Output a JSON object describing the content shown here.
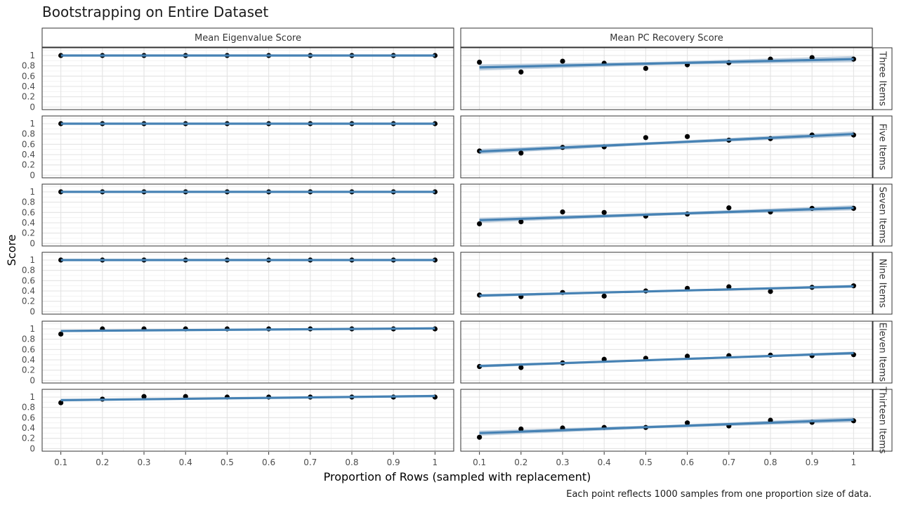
{
  "chart_data": {
    "type": "scatter",
    "title": "Bootstrapping on Entire Dataset",
    "xlabel": "Proportion of Rows (sampled with replacement)",
    "ylabel": "Score",
    "caption": "Each point reflects 1000 samples from one proportion size of data.",
    "x": [
      0.1,
      0.2,
      0.3,
      0.4,
      0.5,
      0.6,
      0.7,
      0.8,
      0.9,
      1.0
    ],
    "x_ticks": [
      "0.1",
      "0.2",
      "0.3",
      "0.4",
      "0.5",
      "0.6",
      "0.7",
      "0.8",
      "0.9",
      "1"
    ],
    "y_ticks": [
      "0",
      "0.2",
      "0.4",
      "0.6",
      "0.8",
      "1"
    ],
    "xlim": [
      0.055,
      1.045
    ],
    "ylim": [
      -0.05,
      1.15
    ],
    "columns": [
      "Mean Eigenvalue Score",
      "Mean PC Recovery Score"
    ],
    "rows": [
      "Three Items",
      "Five Items",
      "Seven Items",
      "Nine Items",
      "Eleven Items",
      "Thirteen Items"
    ],
    "fit_color": "#4682B4",
    "band_color": "#B4C8DA",
    "point_color": "#000000",
    "panels": [
      [
        {
          "values": [
            1.0,
            1.0,
            1.0,
            1.0,
            1.0,
            1.0,
            1.0,
            1.0,
            1.0,
            1.0
          ],
          "fit": [
            1.0,
            1.0
          ],
          "se": 0.003
        },
        {
          "values": [
            0.87,
            0.68,
            0.89,
            0.85,
            0.75,
            0.82,
            0.86,
            0.93,
            0.96,
            0.93
          ],
          "fit": [
            0.77,
            0.93
          ],
          "se": 0.06
        }
      ],
      [
        {
          "values": [
            1.0,
            1.0,
            1.0,
            1.0,
            1.0,
            1.0,
            1.0,
            1.0,
            1.0,
            1.0
          ],
          "fit": [
            1.0,
            1.0
          ],
          "se": 0.003
        },
        {
          "values": [
            0.47,
            0.43,
            0.54,
            0.55,
            0.73,
            0.75,
            0.68,
            0.71,
            0.78,
            0.78
          ],
          "fit": [
            0.46,
            0.8
          ],
          "se": 0.05
        }
      ],
      [
        {
          "values": [
            1.0,
            1.0,
            1.0,
            1.0,
            1.0,
            1.0,
            1.0,
            1.0,
            1.0,
            1.0
          ],
          "fit": [
            1.0,
            1.0
          ],
          "se": 0.003
        },
        {
          "values": [
            0.38,
            0.42,
            0.61,
            0.6,
            0.53,
            0.57,
            0.69,
            0.61,
            0.68,
            0.68
          ],
          "fit": [
            0.45,
            0.69
          ],
          "se": 0.05
        }
      ],
      [
        {
          "values": [
            1.0,
            1.0,
            1.0,
            1.0,
            1.0,
            1.0,
            1.0,
            1.0,
            1.0,
            1.0
          ],
          "fit": [
            1.0,
            1.0
          ],
          "se": 0.003
        },
        {
          "values": [
            0.32,
            0.29,
            0.37,
            0.3,
            0.4,
            0.45,
            0.48,
            0.39,
            0.47,
            0.5
          ],
          "fit": [
            0.31,
            0.49
          ],
          "se": 0.03
        }
      ],
      [
        {
          "values": [
            0.9,
            1.0,
            1.0,
            1.0,
            1.0,
            1.0,
            1.0,
            1.0,
            1.0,
            1.0
          ],
          "fit": [
            0.96,
            1.01
          ],
          "se": 0.02
        },
        {
          "values": [
            0.27,
            0.25,
            0.34,
            0.41,
            0.43,
            0.47,
            0.48,
            0.49,
            0.48,
            0.5
          ],
          "fit": [
            0.28,
            0.53
          ],
          "se": 0.03
        }
      ],
      [
        {
          "values": [
            0.89,
            0.96,
            1.01,
            1.01,
            1.0,
            1.0,
            1.0,
            1.0,
            1.0,
            1.0
          ],
          "fit": [
            0.94,
            1.02
          ],
          "se": 0.025
        },
        {
          "values": [
            0.22,
            0.38,
            0.4,
            0.41,
            0.41,
            0.5,
            0.44,
            0.55,
            0.51,
            0.54
          ],
          "fit": [
            0.3,
            0.56
          ],
          "se": 0.05
        }
      ]
    ]
  }
}
